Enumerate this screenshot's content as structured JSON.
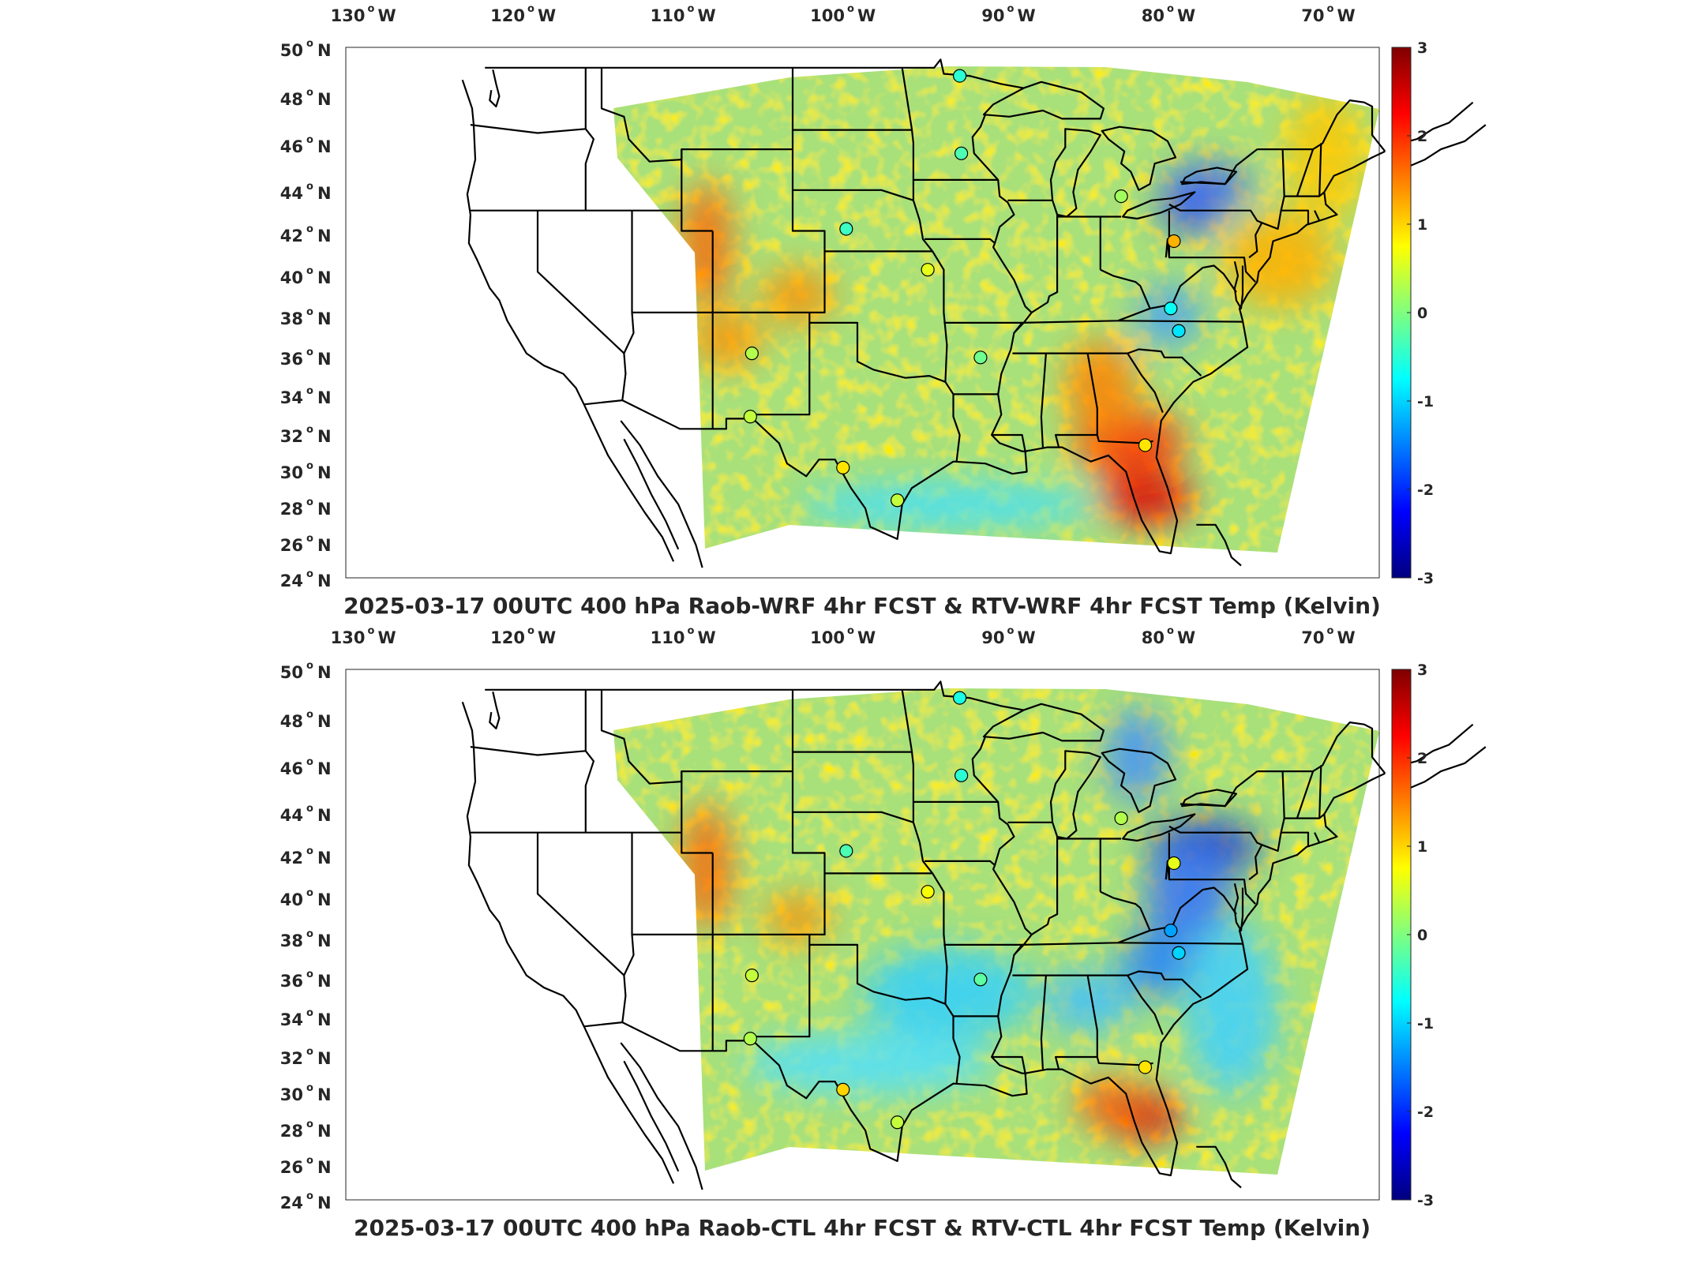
{
  "colors": {
    "colormap": [
      "#00007f",
      "#0000ff",
      "#007fff",
      "#00ffff",
      "#7fff7f",
      "#ffff00",
      "#ff7f00",
      "#ff0000",
      "#7f0000"
    ],
    "field_base": "#a8e07a",
    "boundary": "#000000"
  },
  "lon_labels": [
    {
      "deg": "130",
      "hemi": "W"
    },
    {
      "deg": "120",
      "hemi": "W"
    },
    {
      "deg": "110",
      "hemi": "W"
    },
    {
      "deg": "100",
      "hemi": "W"
    },
    {
      "deg": "90",
      "hemi": "W"
    },
    {
      "deg": "80",
      "hemi": "W"
    },
    {
      "deg": "70",
      "hemi": "W"
    }
  ],
  "lat_labels": [
    {
      "deg": "50",
      "hemi": "N"
    },
    {
      "deg": "48",
      "hemi": "N"
    },
    {
      "deg": "46",
      "hemi": "N"
    },
    {
      "deg": "44",
      "hemi": "N"
    },
    {
      "deg": "42",
      "hemi": "N"
    },
    {
      "deg": "40",
      "hemi": "N"
    },
    {
      "deg": "38",
      "hemi": "N"
    },
    {
      "deg": "36",
      "hemi": "N"
    },
    {
      "deg": "34",
      "hemi": "N"
    },
    {
      "deg": "32",
      "hemi": "N"
    },
    {
      "deg": "30",
      "hemi": "N"
    },
    {
      "deg": "28",
      "hemi": "N"
    },
    {
      "deg": "26",
      "hemi": "N"
    },
    {
      "deg": "24",
      "hemi": "N"
    }
  ],
  "colorbar": {
    "min": -3,
    "max": 3,
    "ticks": [
      "3",
      "2",
      "1",
      "0",
      "-1",
      "-2",
      "-3"
    ]
  },
  "panels": [
    {
      "title": "2025-03-17 00UTC 400 hPa Raob-WRF 4hr FCST & RTV-WRF 4hr FCST Temp (Kelvin)",
      "stations": [
        {
          "lon": -93.6,
          "lat": 48.6,
          "value": -0.5
        },
        {
          "lon": -93.5,
          "lat": 44.8,
          "value": -0.3
        },
        {
          "lon": -83.5,
          "lat": 42.7,
          "value": 0.2
        },
        {
          "lon": -100.7,
          "lat": 41.1,
          "value": -0.4
        },
        {
          "lon": -80.2,
          "lat": 40.5,
          "value": 1.2
        },
        {
          "lon": -95.6,
          "lat": 39.1,
          "value": 0.6
        },
        {
          "lon": -80.4,
          "lat": 37.2,
          "value": -0.7
        },
        {
          "lon": -79.9,
          "lat": 36.1,
          "value": -0.9
        },
        {
          "lon": -106.6,
          "lat": 35.0,
          "value": 0.3
        },
        {
          "lon": -92.3,
          "lat": 34.8,
          "value": -0.1
        },
        {
          "lon": -106.7,
          "lat": 31.9,
          "value": 0.4
        },
        {
          "lon": -82.0,
          "lat": 30.5,
          "value": 0.9
        },
        {
          "lon": -100.9,
          "lat": 29.4,
          "value": 0.9
        },
        {
          "lon": -97.5,
          "lat": 27.8,
          "value": 0.4
        }
      ]
    },
    {
      "title": "2025-03-17 00UTC 400 hPa Raob-CTL 4hr FCST & RTV-CTL 4hr FCST Temp (Kelvin)",
      "stations": [
        {
          "lon": -93.6,
          "lat": 48.6,
          "value": -0.6
        },
        {
          "lon": -93.5,
          "lat": 44.8,
          "value": -0.5
        },
        {
          "lon": -83.5,
          "lat": 42.7,
          "value": 0.3
        },
        {
          "lon": -100.7,
          "lat": 41.1,
          "value": -0.3
        },
        {
          "lon": -80.2,
          "lat": 40.5,
          "value": 0.6
        },
        {
          "lon": -95.6,
          "lat": 39.1,
          "value": 0.7
        },
        {
          "lon": -80.4,
          "lat": 37.2,
          "value": -1.3
        },
        {
          "lon": -79.9,
          "lat": 36.1,
          "value": -1.0
        },
        {
          "lon": -106.6,
          "lat": 35.0,
          "value": 0.4
        },
        {
          "lon": -92.3,
          "lat": 34.8,
          "value": -0.2
        },
        {
          "lon": -106.7,
          "lat": 31.9,
          "value": 0.3
        },
        {
          "lon": -82.0,
          "lat": 30.5,
          "value": 0.9
        },
        {
          "lon": -100.9,
          "lat": 29.4,
          "value": 1.0
        },
        {
          "lon": -97.5,
          "lat": 27.8,
          "value": 0.4
        }
      ]
    }
  ]
}
